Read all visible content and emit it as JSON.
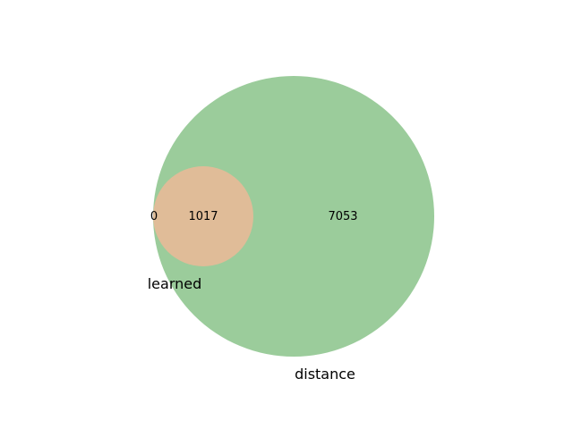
{
  "diagram": {
    "type": "venn2",
    "sets": [
      {
        "id": "learned",
        "label": "learned",
        "color": "#e0bc98"
      },
      {
        "id": "distance",
        "label": "distance",
        "color": "#9bcc9b"
      }
    ],
    "regions": {
      "learned_only": "0",
      "intersection": "1017",
      "distance_only": "7053"
    }
  }
}
